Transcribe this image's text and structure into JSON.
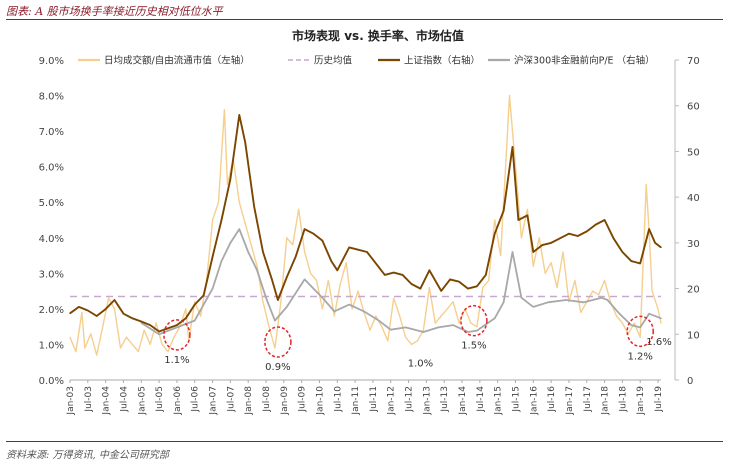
{
  "header": {
    "title": "图表: A 股市场换手率接近历史相对低位水平"
  },
  "footer": {
    "source": "资料来源: 万得资讯, 中金公司研究部"
  },
  "colors": {
    "turnover": "#f5cf8e",
    "hist_mean": "#c9a8cf",
    "index": "#7a4600",
    "pe": "#a8a8a8",
    "circle": "#e0262b"
  },
  "chart_data": {
    "type": "line",
    "title": "市场表现 vs. 换手率、市场估值",
    "x_range": [
      "2003-01",
      "2019-08"
    ],
    "y_left": {
      "min": 0,
      "max": 9,
      "ticks": [
        "0.0%",
        "1.0%",
        "2.0%",
        "3.0%",
        "4.0%",
        "5.0%",
        "6.0%",
        "7.0%",
        "8.0%",
        "9.0%"
      ]
    },
    "y_right": {
      "min": 0,
      "max": 70,
      "ticks": [
        "0",
        "10",
        "20",
        "30",
        "40",
        "50",
        "60",
        "70"
      ]
    },
    "x_ticks": [
      "Jan-03",
      "Jul-03",
      "Jan-04",
      "Jul-04",
      "Jan-05",
      "Jul-05",
      "Jan-06",
      "Jul-06",
      "Jan-07",
      "Jul-07",
      "Jan-08",
      "Jul-08",
      "Jan-09",
      "Jul-09",
      "Jan-10",
      "Jul-10",
      "Jan-11",
      "Jul-11",
      "Jan-12",
      "Jul-12",
      "Jan-13",
      "Jul-13",
      "Jan-14",
      "Jul-14",
      "Jan-15",
      "Jul-15",
      "Jan-16",
      "Jul-16",
      "Jan-17",
      "Jul-17",
      "Jan-18",
      "Jul-18",
      "Jan-19",
      "Jul-19"
    ],
    "legend": [
      {
        "key": "turnover",
        "label": "日均成交额/自由流通市值（左轴）",
        "style": "line"
      },
      {
        "key": "hist_mean",
        "label": "历史均值",
        "style": "dash"
      },
      {
        "key": "index",
        "label": "上证指数（右轴）",
        "style": "line"
      },
      {
        "key": "pe",
        "label": "沪深300非金融前向P/E （右轴）",
        "style": "line"
      }
    ],
    "hist_mean_value": 2.35,
    "series": [
      {
        "name": "日均成交额/自由流通市值（左轴）",
        "key": "turnover",
        "axis": "left",
        "points": [
          [
            "2003-01",
            1.2
          ],
          [
            "2003-03",
            0.8
          ],
          [
            "2003-05",
            1.9
          ],
          [
            "2003-06",
            0.9
          ],
          [
            "2003-08",
            1.3
          ],
          [
            "2003-10",
            0.7
          ],
          [
            "2003-12",
            1.5
          ],
          [
            "2004-02",
            2.3
          ],
          [
            "2004-04",
            2.0
          ],
          [
            "2004-06",
            0.9
          ],
          [
            "2004-08",
            1.2
          ],
          [
            "2004-10",
            1.0
          ],
          [
            "2004-12",
            0.8
          ],
          [
            "2005-02",
            1.4
          ],
          [
            "2005-04",
            1.0
          ],
          [
            "2005-06",
            1.6
          ],
          [
            "2005-08",
            1.0
          ],
          [
            "2005-10",
            0.8
          ],
          [
            "2005-12",
            1.2
          ],
          [
            "2006-02",
            1.5
          ],
          [
            "2006-04",
            2.0
          ],
          [
            "2006-05",
            1.1
          ],
          [
            "2006-07",
            2.2
          ],
          [
            "2006-09",
            1.8
          ],
          [
            "2006-11",
            2.8
          ],
          [
            "2007-01",
            4.5
          ],
          [
            "2007-03",
            5.0
          ],
          [
            "2007-05",
            7.6
          ],
          [
            "2007-06",
            5.5
          ],
          [
            "2007-08",
            6.2
          ],
          [
            "2007-10",
            5.0
          ],
          [
            "2007-12",
            4.4
          ],
          [
            "2008-02",
            3.8
          ],
          [
            "2008-04",
            3.2
          ],
          [
            "2008-06",
            2.2
          ],
          [
            "2008-08",
            1.5
          ],
          [
            "2008-10",
            0.9
          ],
          [
            "2008-12",
            2.2
          ],
          [
            "2009-02",
            4.0
          ],
          [
            "2009-04",
            3.8
          ],
          [
            "2009-06",
            4.8
          ],
          [
            "2009-08",
            3.6
          ],
          [
            "2009-10",
            3.0
          ],
          [
            "2009-12",
            2.8
          ],
          [
            "2010-02",
            2.0
          ],
          [
            "2010-04",
            2.8
          ],
          [
            "2010-06",
            1.8
          ],
          [
            "2010-08",
            2.7
          ],
          [
            "2010-10",
            3.3
          ],
          [
            "2010-12",
            2.0
          ],
          [
            "2011-02",
            2.5
          ],
          [
            "2011-04",
            1.9
          ],
          [
            "2011-06",
            1.4
          ],
          [
            "2011-08",
            1.8
          ],
          [
            "2011-10",
            1.5
          ],
          [
            "2011-12",
            1.1
          ],
          [
            "2012-02",
            2.3
          ],
          [
            "2012-04",
            1.8
          ],
          [
            "2012-06",
            1.2
          ],
          [
            "2012-08",
            1.0
          ],
          [
            "2012-10",
            1.1
          ],
          [
            "2012-12",
            1.4
          ],
          [
            "2013-02",
            2.6
          ],
          [
            "2013-04",
            1.6
          ],
          [
            "2013-06",
            1.8
          ],
          [
            "2013-08",
            2.0
          ],
          [
            "2013-10",
            2.2
          ],
          [
            "2013-12",
            1.6
          ],
          [
            "2014-02",
            2.0
          ],
          [
            "2014-04",
            1.6
          ],
          [
            "2014-06",
            1.5
          ],
          [
            "2014-08",
            2.6
          ],
          [
            "2014-10",
            2.8
          ],
          [
            "2014-12",
            4.5
          ],
          [
            "2015-02",
            3.5
          ],
          [
            "2015-04",
            6.5
          ],
          [
            "2015-05",
            8.0
          ],
          [
            "2015-07",
            6.0
          ],
          [
            "2015-09",
            4.0
          ],
          [
            "2015-11",
            4.8
          ],
          [
            "2016-01",
            3.2
          ],
          [
            "2016-03",
            4.0
          ],
          [
            "2016-05",
            3.0
          ],
          [
            "2016-07",
            3.3
          ],
          [
            "2016-09",
            2.6
          ],
          [
            "2016-11",
            3.6
          ],
          [
            "2017-01",
            2.2
          ],
          [
            "2017-03",
            2.8
          ],
          [
            "2017-05",
            1.9
          ],
          [
            "2017-07",
            2.2
          ],
          [
            "2017-09",
            2.5
          ],
          [
            "2017-11",
            2.4
          ],
          [
            "2018-01",
            2.8
          ],
          [
            "2018-03",
            2.2
          ],
          [
            "2018-05",
            1.8
          ],
          [
            "2018-07",
            1.6
          ],
          [
            "2018-09",
            1.3
          ],
          [
            "2018-11",
            1.6
          ],
          [
            "2019-01",
            1.2
          ],
          [
            "2019-03",
            5.5
          ],
          [
            "2019-04",
            4.2
          ],
          [
            "2019-05",
            2.5
          ],
          [
            "2019-07",
            2.0
          ],
          [
            "2019-08",
            1.6
          ]
        ]
      },
      {
        "name": "上证指数（右轴）",
        "key": "index",
        "axis": "right",
        "points": [
          [
            "2003-01",
            14.6
          ],
          [
            "2003-04",
            16.0
          ],
          [
            "2003-07",
            15.2
          ],
          [
            "2003-10",
            14.0
          ],
          [
            "2004-01",
            15.5
          ],
          [
            "2004-04",
            17.5
          ],
          [
            "2004-07",
            14.5
          ],
          [
            "2004-10",
            13.5
          ],
          [
            "2005-01",
            12.8
          ],
          [
            "2005-04",
            12.0
          ],
          [
            "2005-07",
            10.6
          ],
          [
            "2005-10",
            11.3
          ],
          [
            "2006-01",
            12.0
          ],
          [
            "2006-04",
            13.5
          ],
          [
            "2006-07",
            16.5
          ],
          [
            "2006-10",
            18.5
          ],
          [
            "2007-01",
            27.0
          ],
          [
            "2007-04",
            35.0
          ],
          [
            "2007-07",
            44.0
          ],
          [
            "2007-10",
            58.0
          ],
          [
            "2007-12",
            52.0
          ],
          [
            "2008-03",
            38.0
          ],
          [
            "2008-06",
            28.0
          ],
          [
            "2008-09",
            22.0
          ],
          [
            "2008-11",
            17.5
          ],
          [
            "2009-02",
            22.5
          ],
          [
            "2009-05",
            27.0
          ],
          [
            "2009-08",
            33.0
          ],
          [
            "2009-11",
            32.0
          ],
          [
            "2010-02",
            30.5
          ],
          [
            "2010-05",
            26.0
          ],
          [
            "2010-07",
            24.0
          ],
          [
            "2010-11",
            29.0
          ],
          [
            "2011-02",
            28.5
          ],
          [
            "2011-05",
            28.0
          ],
          [
            "2011-08",
            25.5
          ],
          [
            "2011-11",
            23.0
          ],
          [
            "2012-02",
            23.5
          ],
          [
            "2012-05",
            23.0
          ],
          [
            "2012-08",
            21.0
          ],
          [
            "2012-11",
            20.0
          ],
          [
            "2013-02",
            24.0
          ],
          [
            "2013-06",
            19.5
          ],
          [
            "2013-09",
            22.0
          ],
          [
            "2013-12",
            21.5
          ],
          [
            "2014-03",
            20.0
          ],
          [
            "2014-06",
            20.5
          ],
          [
            "2014-09",
            23.0
          ],
          [
            "2014-12",
            32.0
          ],
          [
            "2015-03",
            37.0
          ],
          [
            "2015-06",
            51.0
          ],
          [
            "2015-08",
            35.0
          ],
          [
            "2015-11",
            36.0
          ],
          [
            "2016-01",
            28.0
          ],
          [
            "2016-04",
            29.5
          ],
          [
            "2016-07",
            30.0
          ],
          [
            "2016-10",
            31.0
          ],
          [
            "2017-01",
            32.0
          ],
          [
            "2017-04",
            31.5
          ],
          [
            "2017-07",
            32.5
          ],
          [
            "2017-10",
            34.0
          ],
          [
            "2018-01",
            35.0
          ],
          [
            "2018-04",
            31.0
          ],
          [
            "2018-07",
            28.0
          ],
          [
            "2018-10",
            26.0
          ],
          [
            "2019-01",
            25.5
          ],
          [
            "2019-04",
            33.0
          ],
          [
            "2019-06",
            30.0
          ],
          [
            "2019-08",
            29.0
          ]
        ]
      },
      {
        "name": "沪深300非金融前向P/E （右轴）",
        "key": "pe",
        "axis": "right",
        "points": [
          [
            "2005-01",
            12.5
          ],
          [
            "2005-07",
            10.0
          ],
          [
            "2006-01",
            11.5
          ],
          [
            "2006-07",
            13.0
          ],
          [
            "2007-01",
            20.0
          ],
          [
            "2007-04",
            26.0
          ],
          [
            "2007-07",
            30.0
          ],
          [
            "2007-10",
            33.0
          ],
          [
            "2008-01",
            28.0
          ],
          [
            "2008-04",
            24.0
          ],
          [
            "2008-07",
            18.0
          ],
          [
            "2008-10",
            13.0
          ],
          [
            "2009-02",
            16.0
          ],
          [
            "2009-05",
            19.0
          ],
          [
            "2009-08",
            22.0
          ],
          [
            "2009-11",
            20.0
          ],
          [
            "2010-02",
            18.0
          ],
          [
            "2010-06",
            15.0
          ],
          [
            "2010-11",
            16.5
          ],
          [
            "2011-04",
            15.0
          ],
          [
            "2011-09",
            13.0
          ],
          [
            "2012-01",
            11.0
          ],
          [
            "2012-06",
            11.5
          ],
          [
            "2012-12",
            10.5
          ],
          [
            "2013-05",
            11.5
          ],
          [
            "2013-10",
            12.0
          ],
          [
            "2014-03",
            10.5
          ],
          [
            "2014-06",
            10.8
          ],
          [
            "2014-12",
            13.5
          ],
          [
            "2015-03",
            17.0
          ],
          [
            "2015-06",
            28.0
          ],
          [
            "2015-09",
            18.0
          ],
          [
            "2016-01",
            16.0
          ],
          [
            "2016-06",
            17.0
          ],
          [
            "2016-12",
            17.5
          ],
          [
            "2017-06",
            17.0
          ],
          [
            "2017-12",
            18.0
          ],
          [
            "2018-02",
            17.5
          ],
          [
            "2018-06",
            14.5
          ],
          [
            "2018-10",
            12.0
          ],
          [
            "2019-01",
            11.5
          ],
          [
            "2019-04",
            14.5
          ],
          [
            "2019-08",
            13.5
          ]
        ]
      }
    ],
    "annotations": [
      {
        "x": "2006-01",
        "y": 1.1,
        "label": "1.1%",
        "circled": true
      },
      {
        "x": "2008-11",
        "y": 0.9,
        "label": "0.9%",
        "circled": true
      },
      {
        "x": "2012-11",
        "y": 1.0,
        "label": "1.0%",
        "circled": false
      },
      {
        "x": "2014-05",
        "y": 1.5,
        "label": "1.5%",
        "circled": true
      },
      {
        "x": "2019-01",
        "y": 1.2,
        "label": "1.2%",
        "circled": true
      },
      {
        "x": "2019-08",
        "y": 1.6,
        "label": "1.6%",
        "circled": false
      }
    ]
  }
}
